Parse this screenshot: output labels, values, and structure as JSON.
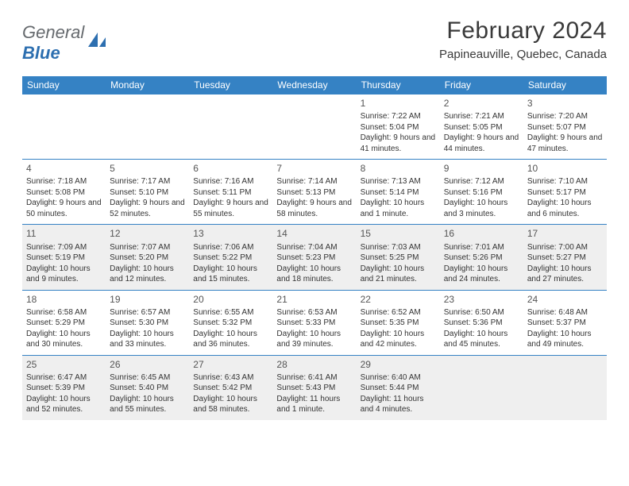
{
  "brand": {
    "part1": "General",
    "part2": "Blue"
  },
  "title": "February 2024",
  "location": "Papineauville, Quebec, Canada",
  "colors": {
    "header_bg": "#3582c4",
    "shaded_bg": "#efefef",
    "rule": "#3582c4",
    "page_bg": "#ffffff",
    "text": "#333333",
    "logo_gray": "#666a6e",
    "logo_blue": "#2d6fb0"
  },
  "day_labels": [
    "Sunday",
    "Monday",
    "Tuesday",
    "Wednesday",
    "Thursday",
    "Friday",
    "Saturday"
  ],
  "weeks": [
    [
      {
        "n": "",
        "sr": "",
        "ss": "",
        "dl": "",
        "shaded": false
      },
      {
        "n": "",
        "sr": "",
        "ss": "",
        "dl": "",
        "shaded": false
      },
      {
        "n": "",
        "sr": "",
        "ss": "",
        "dl": "",
        "shaded": false
      },
      {
        "n": "",
        "sr": "",
        "ss": "",
        "dl": "",
        "shaded": false
      },
      {
        "n": "1",
        "sr": "Sunrise: 7:22 AM",
        "ss": "Sunset: 5:04 PM",
        "dl": "Daylight: 9 hours and 41 minutes.",
        "shaded": false
      },
      {
        "n": "2",
        "sr": "Sunrise: 7:21 AM",
        "ss": "Sunset: 5:05 PM",
        "dl": "Daylight: 9 hours and 44 minutes.",
        "shaded": false
      },
      {
        "n": "3",
        "sr": "Sunrise: 7:20 AM",
        "ss": "Sunset: 5:07 PM",
        "dl": "Daylight: 9 hours and 47 minutes.",
        "shaded": false
      }
    ],
    [
      {
        "n": "4",
        "sr": "Sunrise: 7:18 AM",
        "ss": "Sunset: 5:08 PM",
        "dl": "Daylight: 9 hours and 50 minutes.",
        "shaded": false
      },
      {
        "n": "5",
        "sr": "Sunrise: 7:17 AM",
        "ss": "Sunset: 5:10 PM",
        "dl": "Daylight: 9 hours and 52 minutes.",
        "shaded": false
      },
      {
        "n": "6",
        "sr": "Sunrise: 7:16 AM",
        "ss": "Sunset: 5:11 PM",
        "dl": "Daylight: 9 hours and 55 minutes.",
        "shaded": false
      },
      {
        "n": "7",
        "sr": "Sunrise: 7:14 AM",
        "ss": "Sunset: 5:13 PM",
        "dl": "Daylight: 9 hours and 58 minutes.",
        "shaded": false
      },
      {
        "n": "8",
        "sr": "Sunrise: 7:13 AM",
        "ss": "Sunset: 5:14 PM",
        "dl": "Daylight: 10 hours and 1 minute.",
        "shaded": false
      },
      {
        "n": "9",
        "sr": "Sunrise: 7:12 AM",
        "ss": "Sunset: 5:16 PM",
        "dl": "Daylight: 10 hours and 3 minutes.",
        "shaded": false
      },
      {
        "n": "10",
        "sr": "Sunrise: 7:10 AM",
        "ss": "Sunset: 5:17 PM",
        "dl": "Daylight: 10 hours and 6 minutes.",
        "shaded": false
      }
    ],
    [
      {
        "n": "11",
        "sr": "Sunrise: 7:09 AM",
        "ss": "Sunset: 5:19 PM",
        "dl": "Daylight: 10 hours and 9 minutes.",
        "shaded": true
      },
      {
        "n": "12",
        "sr": "Sunrise: 7:07 AM",
        "ss": "Sunset: 5:20 PM",
        "dl": "Daylight: 10 hours and 12 minutes.",
        "shaded": true
      },
      {
        "n": "13",
        "sr": "Sunrise: 7:06 AM",
        "ss": "Sunset: 5:22 PM",
        "dl": "Daylight: 10 hours and 15 minutes.",
        "shaded": true
      },
      {
        "n": "14",
        "sr": "Sunrise: 7:04 AM",
        "ss": "Sunset: 5:23 PM",
        "dl": "Daylight: 10 hours and 18 minutes.",
        "shaded": true
      },
      {
        "n": "15",
        "sr": "Sunrise: 7:03 AM",
        "ss": "Sunset: 5:25 PM",
        "dl": "Daylight: 10 hours and 21 minutes.",
        "shaded": true
      },
      {
        "n": "16",
        "sr": "Sunrise: 7:01 AM",
        "ss": "Sunset: 5:26 PM",
        "dl": "Daylight: 10 hours and 24 minutes.",
        "shaded": true
      },
      {
        "n": "17",
        "sr": "Sunrise: 7:00 AM",
        "ss": "Sunset: 5:27 PM",
        "dl": "Daylight: 10 hours and 27 minutes.",
        "shaded": true
      }
    ],
    [
      {
        "n": "18",
        "sr": "Sunrise: 6:58 AM",
        "ss": "Sunset: 5:29 PM",
        "dl": "Daylight: 10 hours and 30 minutes.",
        "shaded": false
      },
      {
        "n": "19",
        "sr": "Sunrise: 6:57 AM",
        "ss": "Sunset: 5:30 PM",
        "dl": "Daylight: 10 hours and 33 minutes.",
        "shaded": false
      },
      {
        "n": "20",
        "sr": "Sunrise: 6:55 AM",
        "ss": "Sunset: 5:32 PM",
        "dl": "Daylight: 10 hours and 36 minutes.",
        "shaded": false
      },
      {
        "n": "21",
        "sr": "Sunrise: 6:53 AM",
        "ss": "Sunset: 5:33 PM",
        "dl": "Daylight: 10 hours and 39 minutes.",
        "shaded": false
      },
      {
        "n": "22",
        "sr": "Sunrise: 6:52 AM",
        "ss": "Sunset: 5:35 PM",
        "dl": "Daylight: 10 hours and 42 minutes.",
        "shaded": false
      },
      {
        "n": "23",
        "sr": "Sunrise: 6:50 AM",
        "ss": "Sunset: 5:36 PM",
        "dl": "Daylight: 10 hours and 45 minutes.",
        "shaded": false
      },
      {
        "n": "24",
        "sr": "Sunrise: 6:48 AM",
        "ss": "Sunset: 5:37 PM",
        "dl": "Daylight: 10 hours and 49 minutes.",
        "shaded": false
      }
    ],
    [
      {
        "n": "25",
        "sr": "Sunrise: 6:47 AM",
        "ss": "Sunset: 5:39 PM",
        "dl": "Daylight: 10 hours and 52 minutes.",
        "shaded": true
      },
      {
        "n": "26",
        "sr": "Sunrise: 6:45 AM",
        "ss": "Sunset: 5:40 PM",
        "dl": "Daylight: 10 hours and 55 minutes.",
        "shaded": true
      },
      {
        "n": "27",
        "sr": "Sunrise: 6:43 AM",
        "ss": "Sunset: 5:42 PM",
        "dl": "Daylight: 10 hours and 58 minutes.",
        "shaded": true
      },
      {
        "n": "28",
        "sr": "Sunrise: 6:41 AM",
        "ss": "Sunset: 5:43 PM",
        "dl": "Daylight: 11 hours and 1 minute.",
        "shaded": true
      },
      {
        "n": "29",
        "sr": "Sunrise: 6:40 AM",
        "ss": "Sunset: 5:44 PM",
        "dl": "Daylight: 11 hours and 4 minutes.",
        "shaded": true
      },
      {
        "n": "",
        "sr": "",
        "ss": "",
        "dl": "",
        "shaded": true
      },
      {
        "n": "",
        "sr": "",
        "ss": "",
        "dl": "",
        "shaded": true
      }
    ]
  ]
}
